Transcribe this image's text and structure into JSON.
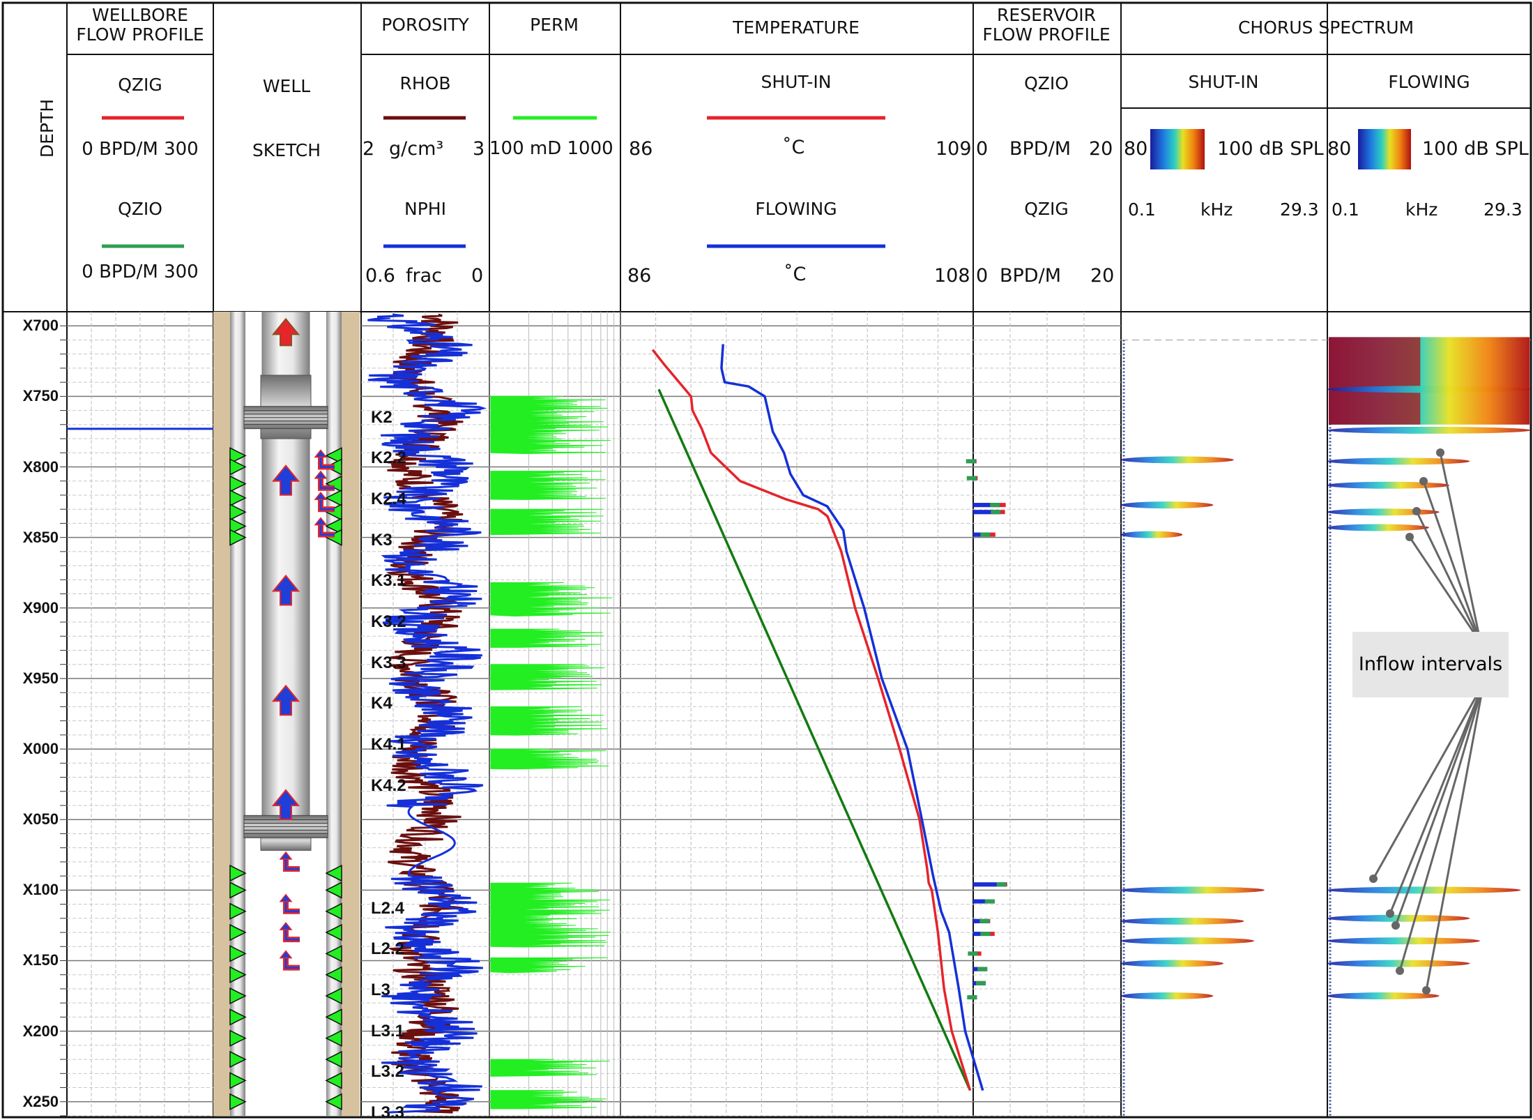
{
  "columns": {
    "depth": {
      "title": "DEPTH"
    },
    "wellbore": {
      "title": "WELLBORE FLOW PROFILE",
      "curve1": "QZIG",
      "range1": "0 BPD/M 300",
      "curve2": "QZIO",
      "range2": "0 BPD/M 300",
      "color1": "#e5242b",
      "color2": "#2e9e52"
    },
    "sketch": {
      "line1": "WELL",
      "line2": "SKETCH"
    },
    "porosity": {
      "title": "POROSITY",
      "curve1": "RHOB",
      "min1": "2",
      "unit1": "g/cm³",
      "max1": "3",
      "curve2": "NPHI",
      "min2": "0.6",
      "unit2": "frac",
      "max2": "0",
      "color1": "#6b0f0f",
      "color2": "#1530d8"
    },
    "perm": {
      "title": "PERM",
      "range": "100 mD 1000",
      "color": "#22ee22"
    },
    "temperature": {
      "title": "TEMPERATURE",
      "curve1": "SHUT-IN",
      "min1": "86",
      "unit1": "˚C",
      "max1": "109",
      "curve2": "FLOWING",
      "min2": "86",
      "unit2": "˚C",
      "max2": "108",
      "color1": "#e5242b",
      "color2": "#1530d8",
      "gradient_color": "#137a13"
    },
    "reservoir": {
      "title": "RESERVOIR FLOW PROFILE",
      "curve1": "QZIO",
      "min1": "0",
      "unit1": "BPD/M",
      "max1": "20",
      "curve2": "QZIG",
      "min2": "0",
      "unit2": "BPD/M",
      "max2": "20"
    },
    "chorus": {
      "title": "CHORUS SPECTRUM",
      "sub1": "SHUT-IN",
      "sub2": "FLOWING",
      "db_min": "80",
      "db_max": "100 dB SPL",
      "f_min": "0.1",
      "f_unit": "kHz",
      "f_max": "29.3"
    }
  },
  "callout": {
    "text": "Inflow intervals"
  },
  "chart_data": {
    "type": "line",
    "depth_axis": {
      "labels": [
        "X700",
        "X750",
        "X800",
        "X850",
        "X900",
        "X950",
        "X000",
        "X050",
        "X100",
        "X150",
        "X200",
        "X250"
      ],
      "values": [
        700,
        750,
        800,
        850,
        900,
        950,
        1000,
        1050,
        1100,
        1150,
        1200,
        1250
      ],
      "range": [
        690,
        1260
      ]
    },
    "zones": [
      {
        "name": "K2",
        "depth": 765
      },
      {
        "name": "K2.2",
        "depth": 794
      },
      {
        "name": "K2.4",
        "depth": 823
      },
      {
        "name": "K3",
        "depth": 852
      },
      {
        "name": "K3.1",
        "depth": 881
      },
      {
        "name": "K3.2",
        "depth": 910
      },
      {
        "name": "K3.3",
        "depth": 939
      },
      {
        "name": "K4",
        "depth": 968
      },
      {
        "name": "K4.1",
        "depth": 997
      },
      {
        "name": "K4.2",
        "depth": 1026
      },
      {
        "name": "L2.4",
        "depth": 1113
      },
      {
        "name": "L2.2",
        "depth": 1142
      },
      {
        "name": "L3",
        "depth": 1171
      },
      {
        "name": "L3.1",
        "depth": 1200
      },
      {
        "name": "L3.2",
        "depth": 1229
      },
      {
        "name": "L3.3",
        "depth": 1258
      }
    ],
    "temperature": {
      "shut_in": {
        "x_range": [
          86,
          109
        ],
        "depth": [
          717,
          728,
          750,
          760,
          773,
          790,
          810,
          823,
          830,
          835,
          860,
          900,
          950,
          1000,
          1050,
          1085,
          1095,
          1100,
          1130,
          1170,
          1200,
          1242
        ],
        "value": [
          88.1,
          88.9,
          90.6,
          90.7,
          91.3,
          91.9,
          93.8,
          96.8,
          98.9,
          99.5,
          100.4,
          101.3,
          102.8,
          104.2,
          105.5,
          106.0,
          106.1,
          106.3,
          106.7,
          107.1,
          107.6,
          108.8
        ]
      },
      "flowing": {
        "x_range": [
          86,
          108
        ],
        "depth": [
          713,
          730,
          740,
          743,
          750,
          775,
          790,
          805,
          820,
          828,
          845,
          860,
          900,
          950,
          1000,
          1050,
          1090,
          1095,
          1115,
          1130,
          1170,
          1200,
          1242
        ],
        "value": [
          92.4,
          92.3,
          92.5,
          94.0,
          95.0,
          95.5,
          96.2,
          96.6,
          97.4,
          98.9,
          99.9,
          100.1,
          101.2,
          102.3,
          103.9,
          104.8,
          105.5,
          105.6,
          106.0,
          106.5,
          107.1,
          107.5,
          108.6
        ]
      },
      "geothermal": {
        "depth": [
          745,
          1242
        ],
        "value": [
          88.5,
          108.8
        ]
      }
    },
    "reservoir_flow": [
      {
        "depth": 796,
        "qzio": 0.35,
        "qzig": 0.45
      },
      {
        "depth": 808,
        "qzio": 0.45,
        "qzig": 0.6
      },
      {
        "depth": 827,
        "qzio": 3.6,
        "qzig": 4.4
      },
      {
        "depth": 832,
        "qzio": 3.7,
        "qzig": 4.3
      },
      {
        "depth": 848,
        "qzio": 2.3,
        "qzig": 3.0
      },
      {
        "depth": 1096,
        "qzio": 4.5,
        "qzig": 4.6
      },
      {
        "depth": 1108,
        "qzio": 2.9,
        "qzig": 2.9
      },
      {
        "depth": 1122,
        "qzio": 2.2,
        "qzig": 2.3
      },
      {
        "depth": 1131,
        "qzio": 2.3,
        "qzig": 2.9
      },
      {
        "depth": 1145,
        "qzio": 0.6,
        "qzig": 1.1
      },
      {
        "depth": 1156,
        "qzio": 1.9,
        "qzig": 1.9
      },
      {
        "depth": 1166,
        "qzio": 1.7,
        "qzig": 1.7
      },
      {
        "depth": 1176,
        "qzio": 0.5,
        "qzig": 0.5
      }
    ],
    "wellbore_flow": {
      "depth": 773,
      "qzio": 300,
      "qzig": 300
    },
    "perm_intervals": [
      [
        750,
        790
      ],
      [
        803,
        823
      ],
      [
        830,
        848
      ],
      [
        882,
        905
      ],
      [
        915,
        928
      ],
      [
        940,
        958
      ],
      [
        970,
        990
      ],
      [
        1000,
        1014
      ],
      [
        1095,
        1140
      ],
      [
        1148,
        1158
      ],
      [
        1220,
        1232
      ],
      [
        1242,
        1255
      ]
    ],
    "spectrum_events": {
      "shut_in": [
        {
          "depth": 795,
          "len": 0.55
        },
        {
          "depth": 827,
          "len": 0.45
        },
        {
          "depth": 848,
          "len": 0.3
        },
        {
          "depth": 1100,
          "len": 0.7
        },
        {
          "depth": 1122,
          "len": 0.6
        },
        {
          "depth": 1136,
          "len": 0.65
        },
        {
          "depth": 1152,
          "len": 0.5
        },
        {
          "depth": 1175,
          "len": 0.45
        }
      ],
      "flowing": [
        {
          "depth": 745,
          "len": 1.0
        },
        {
          "depth": 774,
          "len": 1.0
        },
        {
          "depth": 796,
          "len": 0.7
        },
        {
          "depth": 813,
          "len": 0.6
        },
        {
          "depth": 832,
          "len": 0.55
        },
        {
          "depth": 843,
          "len": 0.5
        },
        {
          "depth": 1100,
          "len": 0.95
        },
        {
          "depth": 1120,
          "len": 0.7
        },
        {
          "depth": 1136,
          "len": 0.75
        },
        {
          "depth": 1152,
          "len": 0.7
        },
        {
          "depth": 1175,
          "len": 0.55
        }
      ]
    }
  }
}
